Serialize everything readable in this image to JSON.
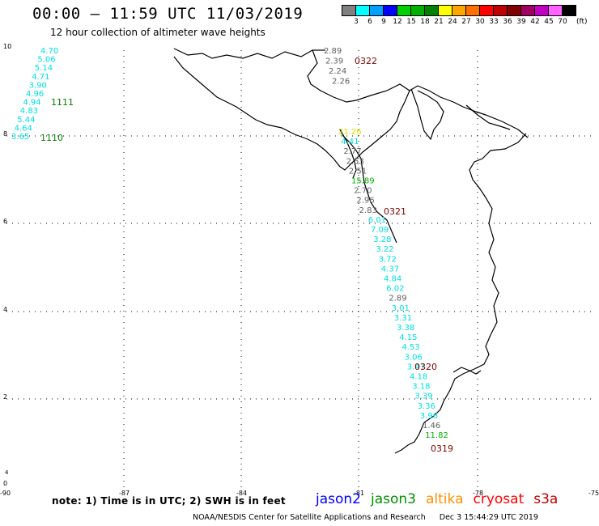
{
  "header": {
    "title": "00:00 – 11:59 UTC 11/03/2019",
    "subtitle": "12 hour collection of altimeter wave heights"
  },
  "colorbar": {
    "unit": "(ft)",
    "colors": [
      "#808080",
      "#00ffff",
      "#00a0ff",
      "#0000ff",
      "#00d000",
      "#00b000",
      "#008000",
      "#ffff00",
      "#ffa500",
      "#ff7000",
      "#ff0000",
      "#c00000",
      "#800000",
      "#a00060",
      "#c000c0",
      "#ff60ff",
      "#000000"
    ],
    "labels": [
      "3",
      "6",
      "9",
      "12",
      "15",
      "18",
      "21",
      "24",
      "27",
      "30",
      "33",
      "36",
      "39",
      "42",
      "45",
      "70"
    ]
  },
  "axes": {
    "x_ticks": [
      "-90",
      "-87",
      "-84",
      "-81",
      "-78",
      "-75"
    ],
    "y_ticks": [
      "0",
      "2",
      "4",
      "6",
      "8",
      "10"
    ]
  },
  "passes": [
    {
      "id": "1111",
      "color": "#008000"
    },
    {
      "id": "1110",
      "color": "#008000"
    },
    {
      "id": "0322",
      "color": "#800000"
    },
    {
      "id": "0321",
      "color": "#800000"
    },
    {
      "id": "0320",
      "color": "#800000"
    },
    {
      "id": "0319",
      "color": "#800000"
    }
  ],
  "track_west": {
    "values": [
      "4.70",
      "5.06",
      "5.14",
      "4.71",
      "3.90",
      "4.96",
      "4.94",
      "4.83",
      "5.44",
      "4.64",
      "3.65"
    ],
    "color": "#00e0e0"
  },
  "track_north": {
    "values": [
      "2.89",
      "2.39",
      "2.24",
      "2.26"
    ],
    "color": "#606060"
  },
  "track_main": {
    "entries": [
      {
        "v": "21.26",
        "c": "#e0e000"
      },
      {
        "v": "4.41",
        "c": "#00e0e0"
      },
      {
        "v": "2.77",
        "c": "#606060"
      },
      {
        "v": "2.53",
        "c": "#606060"
      },
      {
        "v": "2.51",
        "c": "#606060"
      },
      {
        "v": "15.89",
        "c": "#00b000"
      },
      {
        "v": "2.70",
        "c": "#606060"
      },
      {
        "v": "2.96",
        "c": "#606060"
      },
      {
        "v": "2.83",
        "c": "#606060"
      },
      {
        "v": "6.01",
        "c": "#00e0e0"
      },
      {
        "v": "7.09",
        "c": "#00e0e0"
      },
      {
        "v": "3.28",
        "c": "#00e0e0"
      },
      {
        "v": "3.22",
        "c": "#00e0e0"
      },
      {
        "v": "3.72",
        "c": "#00e0e0"
      },
      {
        "v": "4.37",
        "c": "#00e0e0"
      },
      {
        "v": "4.84",
        "c": "#00e0e0"
      },
      {
        "v": "6.02",
        "c": "#00e0e0"
      },
      {
        "v": "2.89",
        "c": "#606060"
      },
      {
        "v": "3.01",
        "c": "#00e0e0"
      },
      {
        "v": "3.31",
        "c": "#00e0e0"
      },
      {
        "v": "3.38",
        "c": "#00e0e0"
      },
      {
        "v": "4.15",
        "c": "#00e0e0"
      },
      {
        "v": "4.53",
        "c": "#00e0e0"
      },
      {
        "v": "3.06",
        "c": "#00e0e0"
      },
      {
        "v": "3.47",
        "c": "#00e0e0"
      },
      {
        "v": "4.18",
        "c": "#00e0e0"
      },
      {
        "v": "3.18",
        "c": "#00e0e0"
      },
      {
        "v": "3.39",
        "c": "#00e0e0"
      },
      {
        "v": "3.36",
        "c": "#00e0e0"
      },
      {
        "v": "3.96",
        "c": "#00e0e0"
      },
      {
        "v": "1.46",
        "c": "#606060"
      },
      {
        "v": "11.82",
        "c": "#00b000"
      }
    ]
  },
  "note": "note:  1) Time is in UTC;  2) SWH is in feet",
  "satellites": [
    {
      "name": "jason2",
      "color": "#0000ff"
    },
    {
      "name": "jason3",
      "color": "#009000"
    },
    {
      "name": "altika",
      "color": "#ff9000"
    },
    {
      "name": "cryosat",
      "color": "#ff0000"
    },
    {
      "name": "s3a",
      "color": "#c00000"
    }
  ],
  "footer": {
    "org": "NOAA/NESDIS Center for Satellite Applications and Research",
    "timestamp": "Dec  3 15:44:29 UTC 2019"
  }
}
